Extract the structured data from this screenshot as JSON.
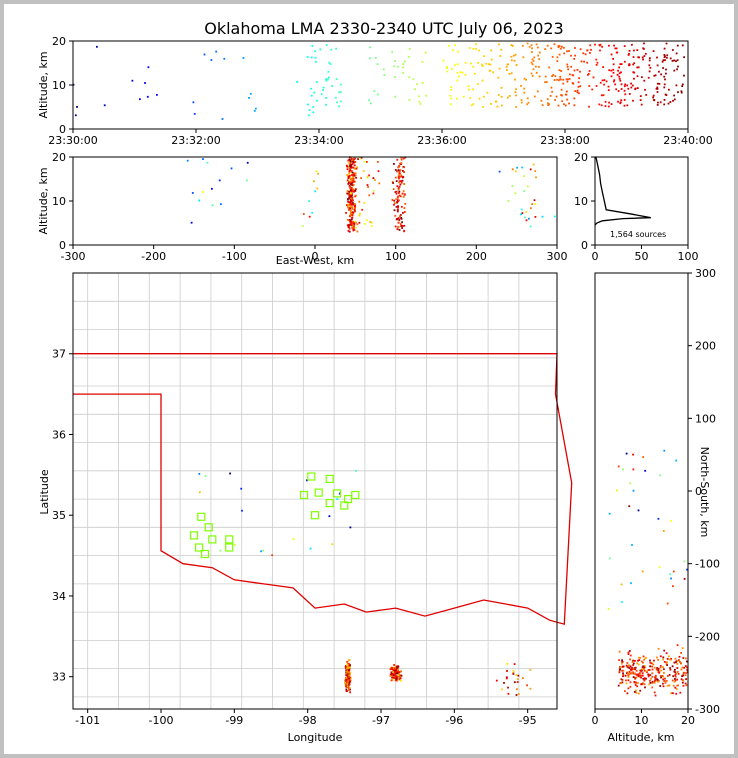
{
  "chart_data": [
    {
      "id": "time_height",
      "type": "scatter",
      "title": "Oklahoma LMA 2330-2340 UTC July 06, 2023",
      "ylabel": "Altitude, km",
      "xlabel": "",
      "xlim": [
        "23:30:00",
        "23:40:00"
      ],
      "ylim": [
        0,
        20
      ],
      "x_ticks": [
        "23:30:00",
        "23:32:00",
        "23:34:00",
        "23:36:00",
        "23:38:00",
        "23:40:00"
      ],
      "y_ticks": [
        0,
        10,
        20
      ],
      "color_encoding": "time (blue to red)"
    },
    {
      "id": "ew_altitude",
      "type": "scatter",
      "xlabel": "East-West, km",
      "ylabel": "Altitude, km",
      "xlim": [
        -300,
        300
      ],
      "ylim": [
        0,
        20
      ],
      "x_ticks": [
        -300,
        -200,
        -100,
        0,
        100,
        200,
        300
      ],
      "y_ticks": [
        0,
        10,
        20
      ]
    },
    {
      "id": "altitude_histogram",
      "type": "line",
      "xlim": [
        0,
        100
      ],
      "ylim": [
        0,
        20
      ],
      "x_ticks": [
        0,
        50,
        100
      ],
      "y_ticks": [
        0,
        10,
        20
      ],
      "annotation": "1,564 sources",
      "x": [
        0,
        2,
        8,
        30,
        60,
        40,
        12,
        10,
        8,
        6,
        5,
        3,
        2,
        1
      ],
      "y": [
        4.5,
        5,
        5.5,
        6,
        6.2,
        7,
        8,
        10,
        12,
        14,
        16,
        18,
        19,
        20
      ]
    },
    {
      "id": "plan_view",
      "type": "scatter",
      "xlabel": "Longitude",
      "ylabel": "Latitude",
      "xlim": [
        -101.2,
        -94.6
      ],
      "ylim": [
        32.6,
        38.0
      ],
      "x_ticks": [
        -101,
        -100,
        -99,
        -98,
        -97,
        -96,
        -95
      ],
      "y_ticks": [
        33,
        34,
        35,
        36,
        37
      ],
      "stations": [
        [
          -97.95,
          35.48
        ],
        [
          -97.7,
          35.45
        ],
        [
          -97.85,
          35.28
        ],
        [
          -98.05,
          35.25
        ],
        [
          -97.6,
          35.27
        ],
        [
          -97.45,
          35.2
        ],
        [
          -97.35,
          35.25
        ],
        [
          -97.7,
          35.15
        ],
        [
          -97.9,
          35.0
        ],
        [
          -97.5,
          35.12
        ],
        [
          -99.45,
          34.98
        ],
        [
          -99.35,
          34.85
        ],
        [
          -99.55,
          34.75
        ],
        [
          -99.3,
          34.7
        ],
        [
          -99.07,
          34.7
        ],
        [
          -99.48,
          34.6
        ],
        [
          -99.4,
          34.52
        ],
        [
          -99.07,
          34.6
        ]
      ]
    },
    {
      "id": "ns_altitude",
      "type": "scatter",
      "xlabel": "Altitude, km",
      "ylabel": "North-South, km",
      "xlim": [
        0,
        20
      ],
      "ylim": [
        -300,
        300
      ],
      "x_ticks": [
        0,
        10,
        20
      ],
      "y_ticks": [
        -300,
        -200,
        -100,
        0,
        100,
        200,
        300
      ]
    }
  ]
}
